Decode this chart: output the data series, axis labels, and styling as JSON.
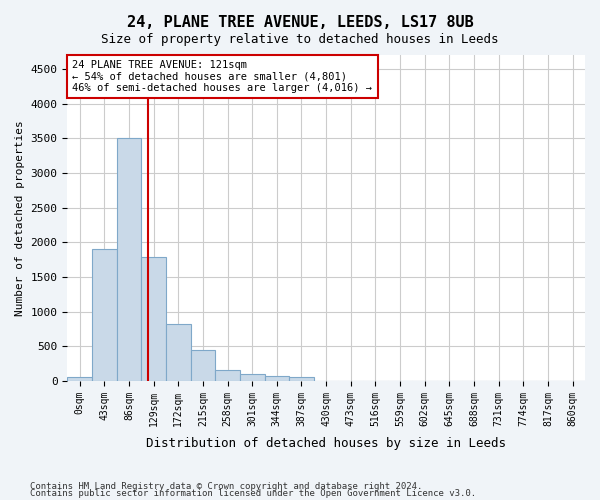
{
  "title": "24, PLANE TREE AVENUE, LEEDS, LS17 8UB",
  "subtitle": "Size of property relative to detached houses in Leeds",
  "xlabel": "Distribution of detached houses by size in Leeds",
  "ylabel": "Number of detached properties",
  "footer_line1": "Contains HM Land Registry data © Crown copyright and database right 2024.",
  "footer_line2": "Contains public sector information licensed under the Open Government Licence v3.0.",
  "annotation_line1": "24 PLANE TREE AVENUE: 121sqm",
  "annotation_line2": "← 54% of detached houses are smaller (4,801)",
  "annotation_line3": "46% of semi-detached houses are larger (4,016) →",
  "bar_color": "#c9d9e8",
  "bar_edge_color": "#7fa8c9",
  "vline_color": "#cc0000",
  "vline_x": 2.79,
  "bins": [
    "0sqm",
    "43sqm",
    "86sqm",
    "129sqm",
    "172sqm",
    "215sqm",
    "258sqm",
    "301sqm",
    "344sqm",
    "387sqm",
    "430sqm",
    "473sqm",
    "516sqm",
    "559sqm",
    "602sqm",
    "645sqm",
    "688sqm",
    "731sqm",
    "774sqm",
    "817sqm",
    "860sqm"
  ],
  "values": [
    50,
    1900,
    3500,
    1780,
    820,
    450,
    155,
    100,
    70,
    60,
    0,
    0,
    0,
    0,
    0,
    0,
    0,
    0,
    0,
    0,
    0
  ],
  "ylim": [
    0,
    4700
  ],
  "yticks": [
    0,
    500,
    1000,
    1500,
    2000,
    2500,
    3000,
    3500,
    4000,
    4500
  ],
  "bg_color": "#f0f4f8",
  "plot_bg_color": "#ffffff",
  "grid_color": "#cccccc",
  "annotation_box_color": "#ffffff",
  "annotation_box_edgecolor": "#cc0000"
}
